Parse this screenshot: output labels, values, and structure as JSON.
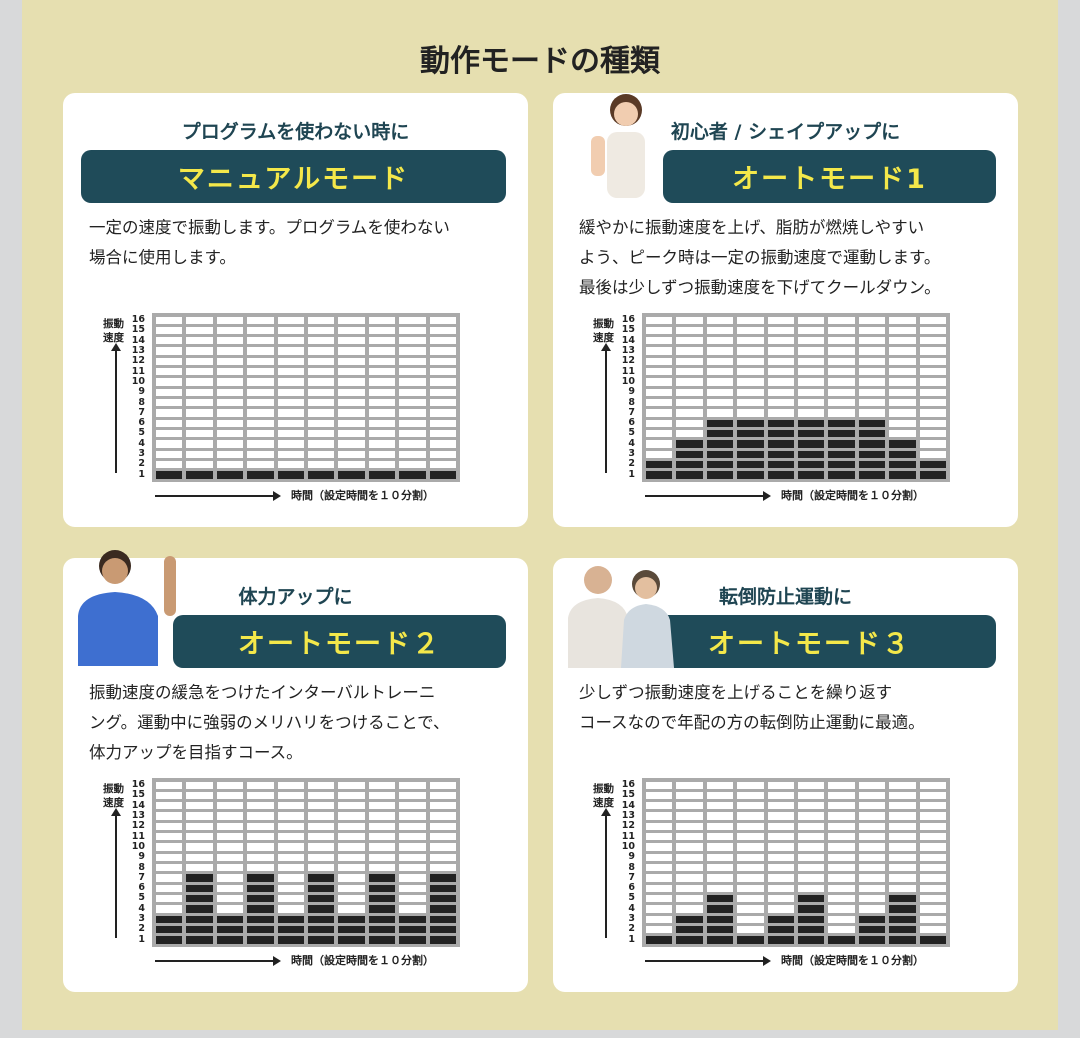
{
  "title": "動作モードの種類",
  "colors": {
    "background": "#e6dfb0",
    "mode_bar": "#1f4b59",
    "mode_text": "#f4e84a",
    "filled_cell": "#222222"
  },
  "cards": [
    {
      "subtitle": "プログラムを使わない時に",
      "mode": "マニュアルモード",
      "desc": [
        "一定の速度で振動します。プログラムを使わない",
        "場合に使用します。"
      ],
      "photo": "none"
    },
    {
      "subtitle": "初心者 / シェイプアップに",
      "mode": "オートモード1",
      "desc": [
        "緩やかに振動速度を上げ、脂肪が燃焼しやすい",
        "よう、ピーク時は一定の振動速度で運動します。",
        "最後は少しずつ振動速度を下げてクールダウン。"
      ],
      "photo": "woman"
    },
    {
      "subtitle": "体力アップに",
      "mode": "オートモード２",
      "desc": [
        "振動速度の緩急をつけたインターバルトレーニ",
        "ング。運動中に強弱のメリハリをつけることで、",
        "体力アップを目指すコース。"
      ],
      "photo": "man"
    },
    {
      "subtitle": "転倒防止運動に",
      "mode": "オートモード３",
      "desc": [
        "少しずつ振動速度を上げることを繰り返す",
        "コースなので年配の方の転倒防止運動に最適。"
      ],
      "photo": "elderly-couple"
    }
  ],
  "chart_data": [
    {
      "type": "bar",
      "ylabel": "振動速度",
      "xlabel": "時間（設定時間を１０分割）",
      "ylim": [
        0,
        16
      ],
      "yticks": [
        1,
        2,
        3,
        4,
        5,
        6,
        7,
        8,
        9,
        10,
        11,
        12,
        13,
        14,
        15,
        16
      ],
      "values": [
        1,
        1,
        1,
        1,
        1,
        1,
        1,
        1,
        1,
        1
      ]
    },
    {
      "type": "bar",
      "ylabel": "振動速度",
      "xlabel": "時間（設定時間を１０分割）",
      "ylim": [
        0,
        16
      ],
      "yticks": [
        1,
        2,
        3,
        4,
        5,
        6,
        7,
        8,
        9,
        10,
        11,
        12,
        13,
        14,
        15,
        16
      ],
      "values": [
        2,
        4,
        6,
        6,
        6,
        6,
        6,
        6,
        4,
        2
      ]
    },
    {
      "type": "bar",
      "ylabel": "振動速度",
      "xlabel": "時間（設定時間を１０分割）",
      "ylim": [
        0,
        16
      ],
      "yticks": [
        1,
        2,
        3,
        4,
        5,
        6,
        7,
        8,
        9,
        10,
        11,
        12,
        13,
        14,
        15,
        16
      ],
      "values": [
        3,
        7,
        3,
        7,
        3,
        7,
        3,
        7,
        3,
        7
      ]
    },
    {
      "type": "bar",
      "ylabel": "振動速度",
      "xlabel": "時間（設定時間を１０分割）",
      "ylim": [
        0,
        16
      ],
      "yticks": [
        1,
        2,
        3,
        4,
        5,
        6,
        7,
        8,
        9,
        10,
        11,
        12,
        13,
        14,
        15,
        16
      ],
      "values": [
        1,
        3,
        5,
        1,
        3,
        5,
        1,
        3,
        5,
        1
      ]
    }
  ]
}
